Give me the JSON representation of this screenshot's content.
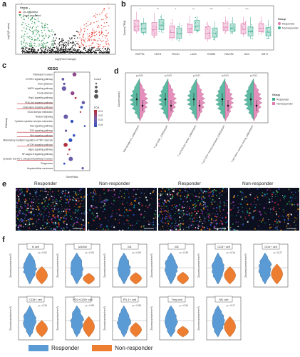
{
  "panel_labels": {
    "a": "a",
    "b": "b",
    "c": "c",
    "d": "d",
    "e": "e",
    "f": "f"
  },
  "volcano": {
    "xlabel": "log2(Fold Change)",
    "ylabel": "-log10(P value)",
    "legend_title": "Group",
    "legend_up": "Up-regulated",
    "legend_down": "Down-regulated",
    "colors": {
      "up": "#e8534a",
      "down": "#3a9a5e",
      "ns": "#111111"
    }
  },
  "boxplot": {
    "ylabel": "Zscore(TPM)",
    "legend_title": "Group",
    "legend_items": [
      "Responder",
      "Nonresponder"
    ],
    "colors": {
      "responder": "#e07bb0",
      "nonresponder": "#3fae93"
    },
    "genes": [
      "ENTPD1",
      "CD274",
      "PDCD1",
      "LAG3",
      "ENSR8",
      "HAVCR2",
      "IDO1",
      "SIRT1"
    ],
    "sig": [
      "*",
      "**",
      "*",
      "**",
      "***",
      "*",
      "***",
      ""
    ]
  },
  "kegg": {
    "title": "KEGG",
    "ylabel": "Pathway",
    "xlabel": "GeneRatio",
    "pathways": [
      "Pathways in cancer",
      "mTORC signaling pathway",
      "Axon guidance",
      "MAPK signaling pathway",
      "Focal adhesion",
      "Rap1 signaling pathway",
      "PI3K-Akt signaling pathway",
      "Chemokine signaling pathway",
      "ECM-receptor interaction",
      "Relaxin signaling",
      "Cytokine-cytokine receptor interaction",
      "Ras signaling pathway",
      "TNF signaling pathway",
      "Wnt signaling pathway",
      "Inflammatory mediator regulation of TRP channels",
      "mTOR signaling pathway",
      "Hippo signaling pathway",
      "NF-kappa B signaling pathway",
      "PD-L1 expression and PD-1 checkpoint pathway in cancer",
      "Phagosome",
      "Hepatocellular carcinoma"
    ],
    "highlighted": [
      6,
      7,
      12,
      13,
      15,
      18
    ],
    "size_legend_title": "Count",
    "color_legend_title": "FDR",
    "color_ticks": [
      "0.01",
      "0.02",
      "0.03",
      "0.04"
    ]
  },
  "violin": {
    "ylabel": "Zscore(value)",
    "legend_title": "Group",
    "legend_items": [
      "Responder",
      "Nonresponder"
    ],
    "colors": {
      "responder": "#3fae93",
      "nonresponder": "#e07bb0"
    },
    "pvalues": [
      "p=0.01",
      "p=0.02",
      "p=0.01",
      "p=0.01",
      "p=0.01"
    ],
    "cells": [
      "Macrophage M1_CIBERSORT",
      "T cell CD8+_CIBERSORT",
      "T cell follicular helper_CIBERSORT",
      "T cell CD4+ memory activated_CIBERSORT",
      "T cell CD4+ memory resting_CIBERSORT"
    ]
  },
  "images": {
    "labels": [
      "Responder",
      "Non-responder",
      "Responder",
      "Non-responder"
    ]
  },
  "cellplots": {
    "ylabel": "Zscore(number/mm²)",
    "colors": {
      "responder": "#5b9bd5",
      "nonresponder": "#ed7d31"
    },
    "row1": [
      {
        "name": "B cell",
        "p": "p = 0.02"
      },
      {
        "name": "M1/M2",
        "p": "p = 0.03"
      },
      {
        "name": "M1",
        "p": "p = 0.09"
      },
      {
        "name": "M2",
        "p": "p = 0.39"
      },
      {
        "name": "CD3+ cell",
        "p": "p = 0.16"
      },
      {
        "name": "CD4+ cell",
        "p": "p = 0.27"
      }
    ],
    "row2": [
      {
        "name": "CD8+ cell",
        "p": "p = 0.34"
      },
      {
        "name": "PD1+CD8+ cell",
        "p": "p = 0.08"
      },
      {
        "name": "PD-1+ cell",
        "p": "p = 0.08"
      },
      {
        "name": "Treg cell",
        "p": "p = 0.34"
      },
      {
        "name": "NK cell",
        "p": "p = 0.17"
      }
    ]
  },
  "bottom_legend": {
    "responder": "Responder",
    "nonresponder": "Non-responder"
  }
}
